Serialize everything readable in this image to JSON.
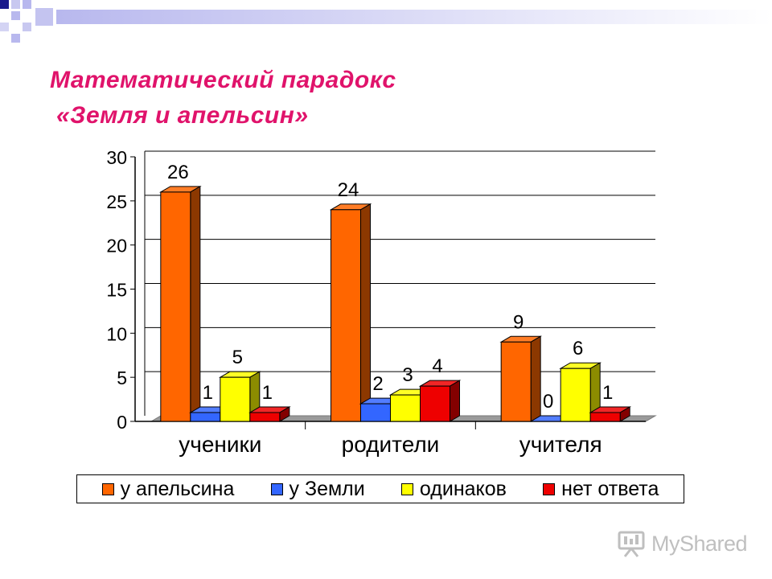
{
  "slide": {
    "title_line1": "Математический парадокс",
    "title_line2": "«Земля и апельсин»"
  },
  "chart_data": {
    "type": "bar",
    "title": "",
    "xlabel": "",
    "ylabel": "",
    "ylim": [
      0,
      30
    ],
    "yticks": [
      "0",
      "5",
      "10",
      "15",
      "20",
      "25",
      "30"
    ],
    "grid": true,
    "legend_placement": "bottom",
    "categories": [
      "ученики",
      "родители",
      "учителя"
    ],
    "series": [
      {
        "name": "у апельсина",
        "values": [
          26,
          24,
          9
        ],
        "color": "#ff6600"
      },
      {
        "name": "у Земли",
        "values": [
          1,
          2,
          0
        ],
        "color": "#3366ff"
      },
      {
        "name": "одинаков",
        "values": [
          5,
          3,
          6
        ],
        "color": "#ffff00"
      },
      {
        "name": "нет ответа",
        "values": [
          1,
          4,
          1
        ],
        "color": "#ee0000"
      }
    ]
  },
  "watermark": {
    "text": "MyShared",
    "icon": "presentation-board-icon"
  },
  "colors": {
    "title": "#e0136b",
    "deco_navy": "#1a1a8c",
    "deco_lavender": "#b8b8ee"
  }
}
